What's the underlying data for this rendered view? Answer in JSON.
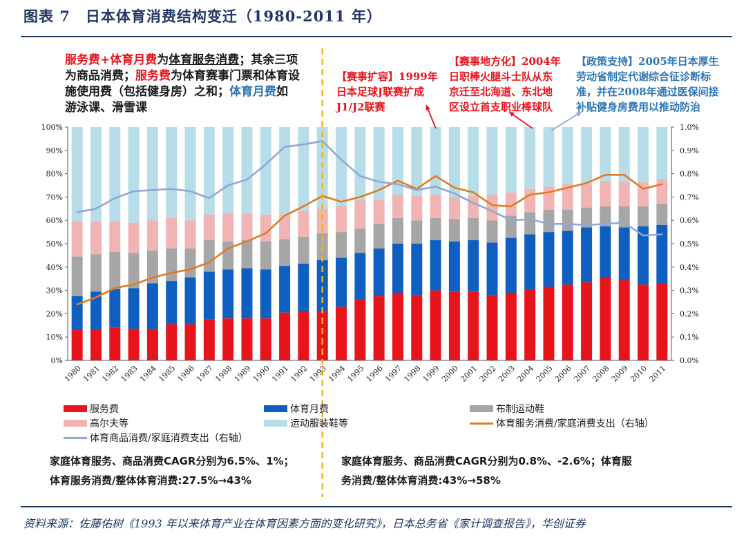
{
  "title": "图表 7　日本体育消费结构变迁（1980-2011 年）",
  "source": "资料来源：佐藤佑树《1993 年以来体育产业在体育因素方面的变化研究》，日本总务省《家计调查报告》，华创证券",
  "colors": {
    "service": "#e8141c",
    "monthly": "#0f5fc0",
    "shoes": "#a6a6a6",
    "golf": "#f0b4b4",
    "apparel": "#b7dde8",
    "service_ratio": "#e07b25",
    "goods_ratio": "#8fa8d6",
    "divider": "#f0b51e"
  },
  "notes": {
    "left": {
      "p1": "服务费",
      "p2": "+",
      "p3": "体育月费",
      "p4": "为",
      "p5": "体育服务消费",
      "p6": "；其余三项",
      "p7": "为商品消费；",
      "p8": "服务费",
      "p9": "为体育赛事门票和体育设",
      "p10": "施使用费（包括健身房）之和；",
      "p11": "体育月费",
      "p12": "如",
      "p13": "游泳课、滑雪课"
    },
    "expand": {
      "l1": "【赛事扩容】1999年",
      "l2": "日本足球J联赛扩成",
      "l3": "J1/J2联赛"
    },
    "local": {
      "l1": "【赛事地方化】2004年",
      "l2": "日职棒火腿斗士队从东",
      "l3": "京迁至北海道、东北地",
      "l4": "区设立首支职业棒球队"
    },
    "policy": {
      "l1": "【政策支持】2005年日本厚生",
      "l2": "劳动省制定代谢综合征诊断标",
      "l3": "准，并在2008年通过医保间接",
      "l4": "补贴健身房费用以推动防治"
    }
  },
  "legend": {
    "service": "服务费",
    "monthly": "体育月费",
    "shoes": "布制运动鞋",
    "golf": "高尔夫等",
    "apparel": "运动服装鞋等",
    "service_ratio": "体育服务消费/家庭消费支出（右轴）",
    "goods_ratio": "体育商品消费/家庭消费支出（右轴）"
  },
  "cagr": {
    "left1": "家庭体育服务、商品消费CAGR分别为6.5%、1%；",
    "left2": "体育服务消费/整体体育消费:27.5%→43%",
    "right1": "家庭体育服务、商品消费CAGR分别为0.8%、-2.6%；体育服",
    "right2": "务消费/整体体育消费:43%→58%"
  },
  "chart_data": {
    "type": "bar",
    "stacked": true,
    "title": "日本体育消费结构变迁（1980-2011 年）",
    "categories": [
      "1980",
      "1981",
      "1982",
      "1983",
      "1984",
      "1985",
      "1986",
      "1987",
      "1988",
      "1989",
      "1990",
      "1991",
      "1992",
      "1993",
      "1994",
      "1995",
      "1996",
      "1997",
      "1998",
      "1999",
      "2000",
      "2001",
      "2002",
      "2003",
      "2004",
      "2005",
      "2006",
      "2007",
      "2008",
      "2009",
      "2010",
      "2011"
    ],
    "left_axis": {
      "ylim": [
        0,
        100
      ],
      "ticks": [
        "0%",
        "10%",
        "20%",
        "30%",
        "40%",
        "50%",
        "60%",
        "70%",
        "80%",
        "90%",
        "100%"
      ]
    },
    "right_axis": {
      "ylim": [
        0,
        1.0
      ],
      "ticks": [
        "0.0%",
        "0.1%",
        "0.2%",
        "0.3%",
        "0.4%",
        "0.5%",
        "0.6%",
        "0.7%",
        "0.8%",
        "0.9%",
        "1.0%"
      ]
    },
    "series": [
      {
        "name": "服务费",
        "key": "service",
        "type": "bar",
        "values": [
          13,
          13,
          14,
          13.5,
          13.5,
          15.5,
          15.5,
          17.5,
          18,
          18,
          18,
          20.5,
          21,
          21,
          23,
          26,
          27.5,
          29,
          28,
          30,
          29.5,
          29.5,
          28,
          29,
          30.5,
          31.5,
          32.5,
          33.5,
          35.5,
          34.5,
          32.5,
          33
        ]
      },
      {
        "name": "体育月费",
        "key": "monthly",
        "type": "bar",
        "values": [
          14.5,
          16.5,
          16.5,
          17.5,
          19.5,
          18.5,
          20,
          20.5,
          21,
          21.5,
          21,
          20,
          20.5,
          22,
          21,
          20,
          20.5,
          21,
          22,
          21.5,
          21.5,
          22,
          22.5,
          23.5,
          23.5,
          23.5,
          23,
          23.5,
          22,
          22.5,
          25,
          25
        ]
      },
      {
        "name": "布制运动鞋",
        "key": "shoes",
        "type": "bar",
        "values": [
          17,
          16,
          16,
          15,
          14,
          14,
          12.5,
          13.5,
          12,
          12,
          12,
          11.5,
          11.5,
          11.5,
          11,
          10.5,
          10.5,
          11,
          10,
          9.5,
          9.5,
          9.5,
          9.5,
          9.5,
          9.5,
          9.5,
          9,
          8.5,
          8.5,
          9,
          8.5,
          9
        ]
      },
      {
        "name": "高尔夫等",
        "key": "golf",
        "type": "bar",
        "values": [
          15,
          14,
          13,
          13,
          13,
          13,
          12,
          11,
          12,
          11.5,
          11.5,
          10.5,
          11,
          10.5,
          11,
          12,
          10.5,
          10,
          10.5,
          10,
          9.5,
          9.5,
          11,
          10,
          10,
          10,
          11,
          10.5,
          11,
          10.5,
          10.5,
          10.5
        ]
      },
      {
        "name": "运动服装鞋等",
        "key": "apparel",
        "type": "bar",
        "values": [
          40.5,
          40.5,
          40.5,
          41,
          40,
          39,
          40,
          37.5,
          37,
          37,
          37.5,
          37.5,
          36,
          35,
          34,
          31.5,
          31,
          29,
          29.5,
          29,
          30,
          29.5,
          29,
          28,
          26.5,
          25.5,
          24.5,
          24,
          23,
          23.5,
          23.5,
          22.5
        ]
      },
      {
        "name": "体育服务消费/家庭消费支出（右轴）",
        "key": "service_ratio",
        "type": "line",
        "axis": "right",
        "values": [
          0.24,
          0.27,
          0.31,
          0.325,
          0.355,
          0.375,
          0.39,
          0.42,
          0.48,
          0.51,
          0.545,
          0.62,
          0.66,
          0.705,
          0.68,
          0.7,
          0.73,
          0.77,
          0.735,
          0.79,
          0.74,
          0.72,
          0.665,
          0.66,
          0.71,
          0.72,
          0.74,
          0.76,
          0.795,
          0.795,
          0.735,
          0.755
        ]
      },
      {
        "name": "体育商品消费/家庭消费支出（右轴）",
        "key": "goods_ratio",
        "type": "line",
        "axis": "right",
        "values": [
          0.635,
          0.65,
          0.695,
          0.725,
          0.73,
          0.735,
          0.725,
          0.695,
          0.75,
          0.775,
          0.84,
          0.915,
          0.925,
          0.94,
          0.86,
          0.79,
          0.765,
          0.755,
          0.73,
          0.745,
          0.715,
          0.675,
          0.64,
          0.6,
          0.605,
          0.585,
          0.585,
          0.58,
          0.585,
          0.59,
          0.535,
          0.54
        ]
      }
    ],
    "divider_after": "1993"
  }
}
